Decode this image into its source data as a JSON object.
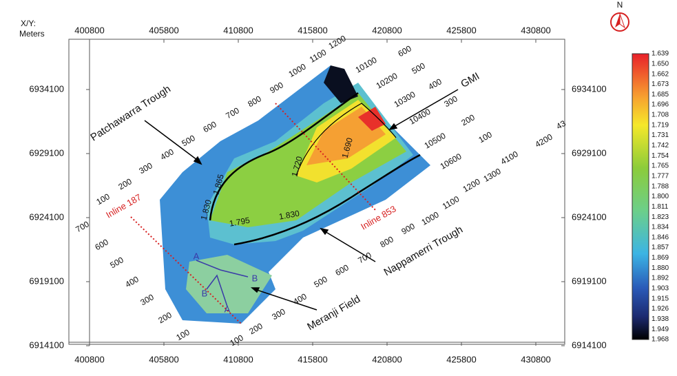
{
  "header": {
    "xy": "X/Y:",
    "units": "Meters",
    "north": "N"
  },
  "axes": {
    "x_ticks": [
      "400800",
      "405800",
      "410800",
      "415800",
      "420800",
      "425800",
      "430800"
    ],
    "y_ticks": [
      "6934100",
      "6929100",
      "6924100",
      "6919100",
      "6914100"
    ]
  },
  "colorbar": [
    "1.639",
    "1.650",
    "1.662",
    "1.673",
    "1.685",
    "1.696",
    "1.708",
    "1.719",
    "1.731",
    "1.742",
    "1.754",
    "1.765",
    "1.777",
    "1.788",
    "1.800",
    "1.811",
    "1.823",
    "1.834",
    "1.846",
    "1.857",
    "1.869",
    "1.880",
    "1.892",
    "1.903",
    "1.915",
    "1.926",
    "1.938",
    "1.949",
    "1.968"
  ],
  "annotations": {
    "patchawarra": "Patchawarra Trough",
    "gmi": "GMI",
    "nappamerri": "Nappamerri Trough",
    "meranji": "Meranji Field",
    "inline_187": "Inline 187",
    "inline_853": "Inline 853"
  },
  "contour_labels": [
    "1.865",
    "1.830",
    "1.795",
    "1.830",
    "1.720",
    "1.690"
  ],
  "line_labels": [
    "100",
    "200",
    "300",
    "400",
    "500",
    "600",
    "700",
    "800",
    "900",
    "1000",
    "1100",
    "1200",
    "10100",
    "600",
    "10200",
    "500",
    "10300",
    "400",
    "10400",
    "300",
    "10500",
    "200",
    "10600",
    "100",
    "4100",
    "4200",
    "43",
    "1300",
    "1200",
    "1100",
    "1000",
    "900",
    "800",
    "700",
    "600",
    "500",
    "400",
    "300",
    "200",
    "100",
    "700",
    "600",
    "500",
    "400",
    "300",
    "200",
    "100"
  ],
  "well_labels": [
    "A",
    "B",
    "B",
    "A"
  ]
}
